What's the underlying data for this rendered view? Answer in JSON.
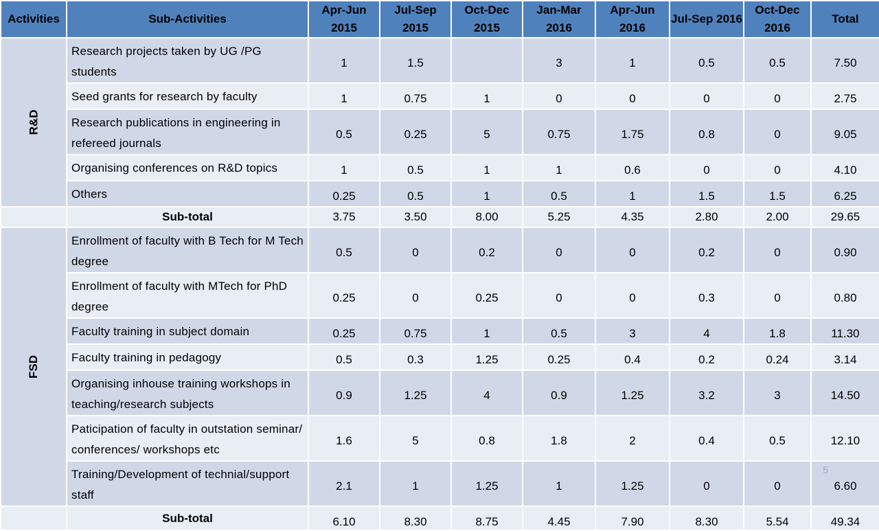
{
  "headers": [
    "Activities",
    "Sub-Activities",
    "Apr-Jun 2015",
    "Jul-Sep 2015",
    "Oct-Dec 2015",
    "Jan-Mar 2016",
    "Apr-Jun 2016",
    "Jul-Sep 2016",
    "Oct-Dec 2016",
    "Total"
  ],
  "groups": [
    {
      "name": "R&D",
      "rows": [
        {
          "sub": "Research projects taken by UG /PG students",
          "values": [
            "1",
            "1.5",
            "",
            "3",
            "1",
            "0.5",
            "0.5",
            "7.50"
          ]
        },
        {
          "sub": "Seed grants for research by faculty",
          "values": [
            "1",
            "0.75",
            "1",
            "0",
            "0",
            "0",
            "0",
            "2.75"
          ]
        },
        {
          "sub": "Research publications in engineering in refereed journals",
          "values": [
            "0.5",
            "0.25",
            "5",
            "0.75",
            "1.75",
            "0.8",
            "0",
            "9.05"
          ]
        },
        {
          "sub": "Organising conferences on R&D topics",
          "values": [
            "1",
            "0.5",
            "1",
            "1",
            "0.6",
            "0",
            "0",
            "4.10"
          ]
        },
        {
          "sub": "Others",
          "values": [
            "0.25",
            "0.5",
            "1",
            "0.5",
            "1",
            "1.5",
            "1.5",
            "6.25"
          ]
        }
      ],
      "subtotal": {
        "label": "Sub-total",
        "values": [
          "3.75",
          "3.50",
          "8.00",
          "5.25",
          "4.35",
          "2.80",
          "2.00",
          "29.65"
        ]
      }
    },
    {
      "name": "FSD",
      "rows": [
        {
          "sub": "Enrollment of faculty with B Tech for M Tech degree",
          "values": [
            "0.5",
            "0",
            "0.2",
            "0",
            "0",
            "0.2",
            "0",
            "0.90"
          ]
        },
        {
          "sub": "Enrollment of faculty with MTech for PhD degree",
          "values": [
            "0.25",
            "0",
            "0.25",
            "0",
            "0",
            "0.3",
            "0",
            "0.80"
          ]
        },
        {
          "sub": "Faculty training in subject domain",
          "values": [
            "0.25",
            "0.75",
            "1",
            "0.5",
            "3",
            "4",
            "1.8",
            "11.30"
          ]
        },
        {
          "sub": "Faculty training in pedagogy",
          "values": [
            "0.5",
            "0.3",
            "1.25",
            "0.25",
            "0.4",
            "0.2",
            "0.24",
            "3.14"
          ]
        },
        {
          "sub": "Organising inhouse training workshops in teaching/research subjects",
          "values": [
            "0.9",
            "1.25",
            "4",
            "0.9",
            "1.25",
            "3.2",
            "3",
            "14.50"
          ]
        },
        {
          "sub": "Paticipation of faculty in outstation seminar/ conferences/ workshops etc",
          "values": [
            "1.6",
            "5",
            "0.8",
            "1.8",
            "2",
            "0.4",
            "0.5",
            "12.10"
          ]
        },
        {
          "sub": "Training/Development of technial/support staff",
          "values": [
            "2.1",
            "1",
            "1.25",
            "1",
            "1.25",
            "0",
            "0",
            "6.60"
          ]
        }
      ],
      "subtotal": {
        "label": "Sub-total",
        "values": [
          "6.10",
          "8.30",
          "8.75",
          "4.45",
          "7.90",
          "8.30",
          "5.54",
          "49.34"
        ]
      }
    }
  ],
  "page_number": "5",
  "colors": {
    "header": "#4f81bd",
    "row_dark": "#d0d8e8",
    "row_light": "#e9edf4"
  }
}
